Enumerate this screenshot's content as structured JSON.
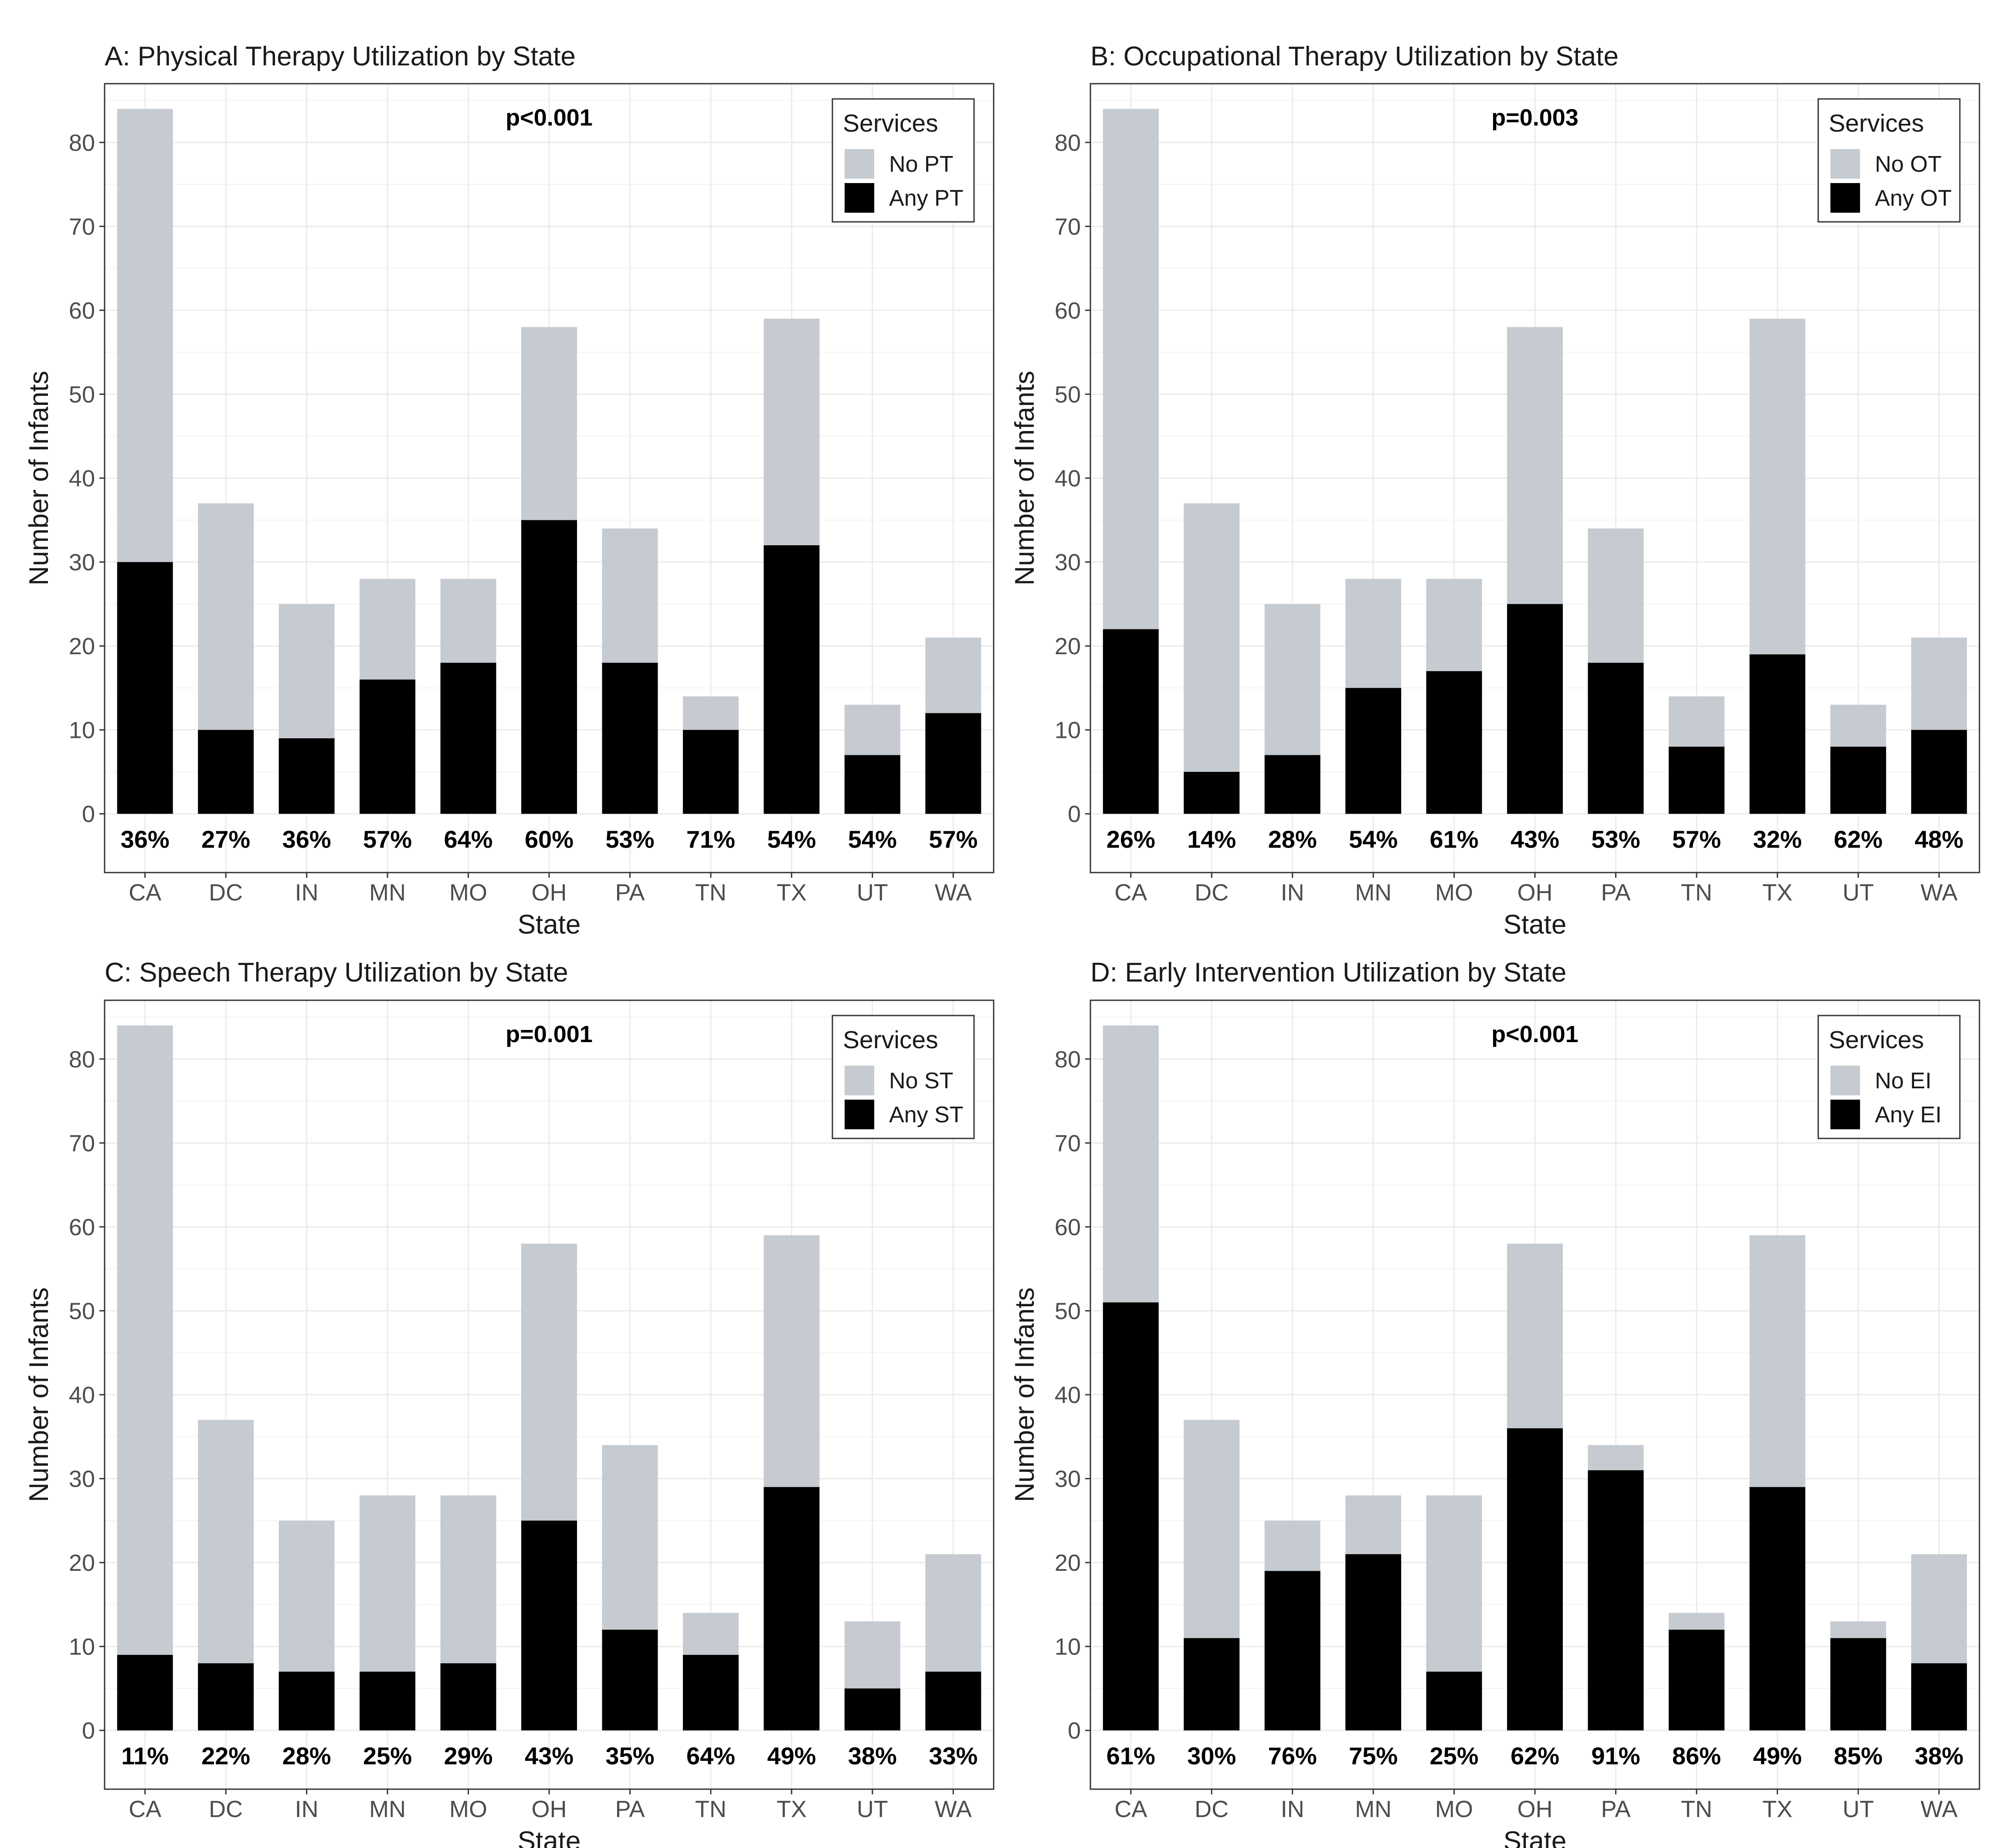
{
  "colors": {
    "any": "#000000",
    "none": "#c5cbd0",
    "grid": "#ebebeb",
    "frame": "#333333"
  },
  "chart_data": [
    {
      "type": "bar",
      "stacked": true,
      "title": "A: Physical Therapy Utilization by State",
      "xlabel": "State",
      "ylabel": "Number of Infants",
      "ylim": [
        -7,
        87
      ],
      "yticks": [
        0,
        10,
        20,
        30,
        40,
        50,
        60,
        70,
        80
      ],
      "grid": true,
      "p_value": "p<0.001",
      "legend": {
        "title": "Services",
        "position": "top-right",
        "entries": [
          "No PT",
          "Any PT"
        ]
      },
      "categories": [
        "CA",
        "DC",
        "IN",
        "MN",
        "MO",
        "OH",
        "PA",
        "TN",
        "TX",
        "UT",
        "WA"
      ],
      "series": [
        {
          "name": "Any PT",
          "values": [
            30,
            10,
            9,
            16,
            18,
            35,
            18,
            10,
            32,
            7,
            12
          ]
        },
        {
          "name": "No PT",
          "values": [
            54,
            27,
            16,
            12,
            10,
            23,
            16,
            4,
            27,
            6,
            9
          ]
        }
      ],
      "totals": [
        84,
        37,
        25,
        28,
        28,
        58,
        34,
        14,
        59,
        13,
        21
      ],
      "percent_labels": [
        "36%",
        "27%",
        "36%",
        "57%",
        "64%",
        "60%",
        "53%",
        "71%",
        "54%",
        "54%",
        "57%"
      ]
    },
    {
      "type": "bar",
      "stacked": true,
      "title": "B: Occupational Therapy Utilization by State",
      "xlabel": "State",
      "ylabel": "Number of Infants",
      "ylim": [
        -7,
        87
      ],
      "yticks": [
        0,
        10,
        20,
        30,
        40,
        50,
        60,
        70,
        80
      ],
      "grid": true,
      "p_value": "p=0.003",
      "legend": {
        "title": "Services",
        "position": "top-right",
        "entries": [
          "No OT",
          "Any OT"
        ]
      },
      "categories": [
        "CA",
        "DC",
        "IN",
        "MN",
        "MO",
        "OH",
        "PA",
        "TN",
        "TX",
        "UT",
        "WA"
      ],
      "series": [
        {
          "name": "Any OT",
          "values": [
            22,
            5,
            7,
            15,
            17,
            25,
            18,
            8,
            19,
            8,
            10
          ]
        },
        {
          "name": "No OT",
          "values": [
            62,
            32,
            18,
            13,
            11,
            33,
            16,
            6,
            40,
            5,
            11
          ]
        }
      ],
      "totals": [
        84,
        37,
        25,
        28,
        28,
        58,
        34,
        14,
        59,
        13,
        21
      ],
      "percent_labels": [
        "26%",
        "14%",
        "28%",
        "54%",
        "61%",
        "43%",
        "53%",
        "57%",
        "32%",
        "62%",
        "48%"
      ]
    },
    {
      "type": "bar",
      "stacked": true,
      "title": "C: Speech Therapy Utilization by State",
      "xlabel": "State",
      "ylabel": "Number of Infants",
      "ylim": [
        -7,
        87
      ],
      "yticks": [
        0,
        10,
        20,
        30,
        40,
        50,
        60,
        70,
        80
      ],
      "grid": true,
      "p_value": "p=0.001",
      "legend": {
        "title": "Services",
        "position": "top-right",
        "entries": [
          "No ST",
          "Any ST"
        ]
      },
      "categories": [
        "CA",
        "DC",
        "IN",
        "MN",
        "MO",
        "OH",
        "PA",
        "TN",
        "TX",
        "UT",
        "WA"
      ],
      "series": [
        {
          "name": "Any ST",
          "values": [
            9,
            8,
            7,
            7,
            8,
            25,
            12,
            9,
            29,
            5,
            7
          ]
        },
        {
          "name": "No ST",
          "values": [
            75,
            29,
            18,
            21,
            20,
            33,
            22,
            5,
            30,
            8,
            14
          ]
        }
      ],
      "totals": [
        84,
        37,
        25,
        28,
        28,
        58,
        34,
        14,
        59,
        13,
        21
      ],
      "percent_labels": [
        "11%",
        "22%",
        "28%",
        "25%",
        "29%",
        "43%",
        "35%",
        "64%",
        "49%",
        "38%",
        "33%"
      ]
    },
    {
      "type": "bar",
      "stacked": true,
      "title": "D: Early Intervention Utilization by State",
      "xlabel": "State",
      "ylabel": "Number of Infants",
      "ylim": [
        -7,
        87
      ],
      "yticks": [
        0,
        10,
        20,
        30,
        40,
        50,
        60,
        70,
        80
      ],
      "grid": true,
      "p_value": "p<0.001",
      "legend": {
        "title": "Services",
        "position": "top-right",
        "entries": [
          "No EI",
          "Any EI"
        ]
      },
      "categories": [
        "CA",
        "DC",
        "IN",
        "MN",
        "MO",
        "OH",
        "PA",
        "TN",
        "TX",
        "UT",
        "WA"
      ],
      "series": [
        {
          "name": "Any EI",
          "values": [
            51,
            11,
            19,
            21,
            7,
            36,
            31,
            12,
            29,
            11,
            8
          ]
        },
        {
          "name": "No EI",
          "values": [
            33,
            26,
            6,
            7,
            21,
            22,
            3,
            2,
            30,
            2,
            13
          ]
        }
      ],
      "totals": [
        84,
        37,
        25,
        28,
        28,
        58,
        34,
        14,
        59,
        13,
        21
      ],
      "percent_labels": [
        "61%",
        "30%",
        "76%",
        "75%",
        "25%",
        "62%",
        "91%",
        "86%",
        "49%",
        "85%",
        "38%"
      ]
    }
  ]
}
